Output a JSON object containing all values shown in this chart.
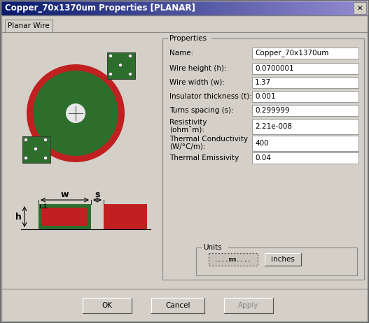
{
  "title": "Copper_70x1370um Properties [PLANAR]",
  "tab_label": "Planar Wire",
  "properties_label": "Properties",
  "fields": [
    {
      "label": "Name:",
      "value": "Copper_70x1370um",
      "multiline": false
    },
    {
      "label": "Wire height (h):",
      "value": "0.0700001",
      "multiline": false
    },
    {
      "label": "Wire width (w):",
      "value": "1.37",
      "multiline": false
    },
    {
      "label": "Insulator thickness (t):",
      "value": "0.001",
      "multiline": false
    },
    {
      "label": "Turns spacing (s):",
      "value": "0.299999",
      "multiline": false
    },
    {
      "label": "Resistivity\n(ohm˜m):",
      "value": "2.21e-008",
      "multiline": true
    },
    {
      "label": "Thermal Conductivity\n(W/°C/m):",
      "value": "400",
      "multiline": true
    },
    {
      "label": "Thermal Emissivity",
      "value": "0.04",
      "multiline": false
    }
  ],
  "units_label": "Units",
  "btn_mm": "....mm....",
  "btn_inches": "inches",
  "btn_ok": "OK",
  "btn_cancel": "Cancel",
  "btn_apply": "Apply",
  "dialog_bg": "#d4d0c8",
  "field_bg": "#ffffff",
  "green_color": "#2d6e2d",
  "red_color": "#c02020",
  "titlebar_left": "#08216b",
  "titlebar_right": "#a6c8f0"
}
